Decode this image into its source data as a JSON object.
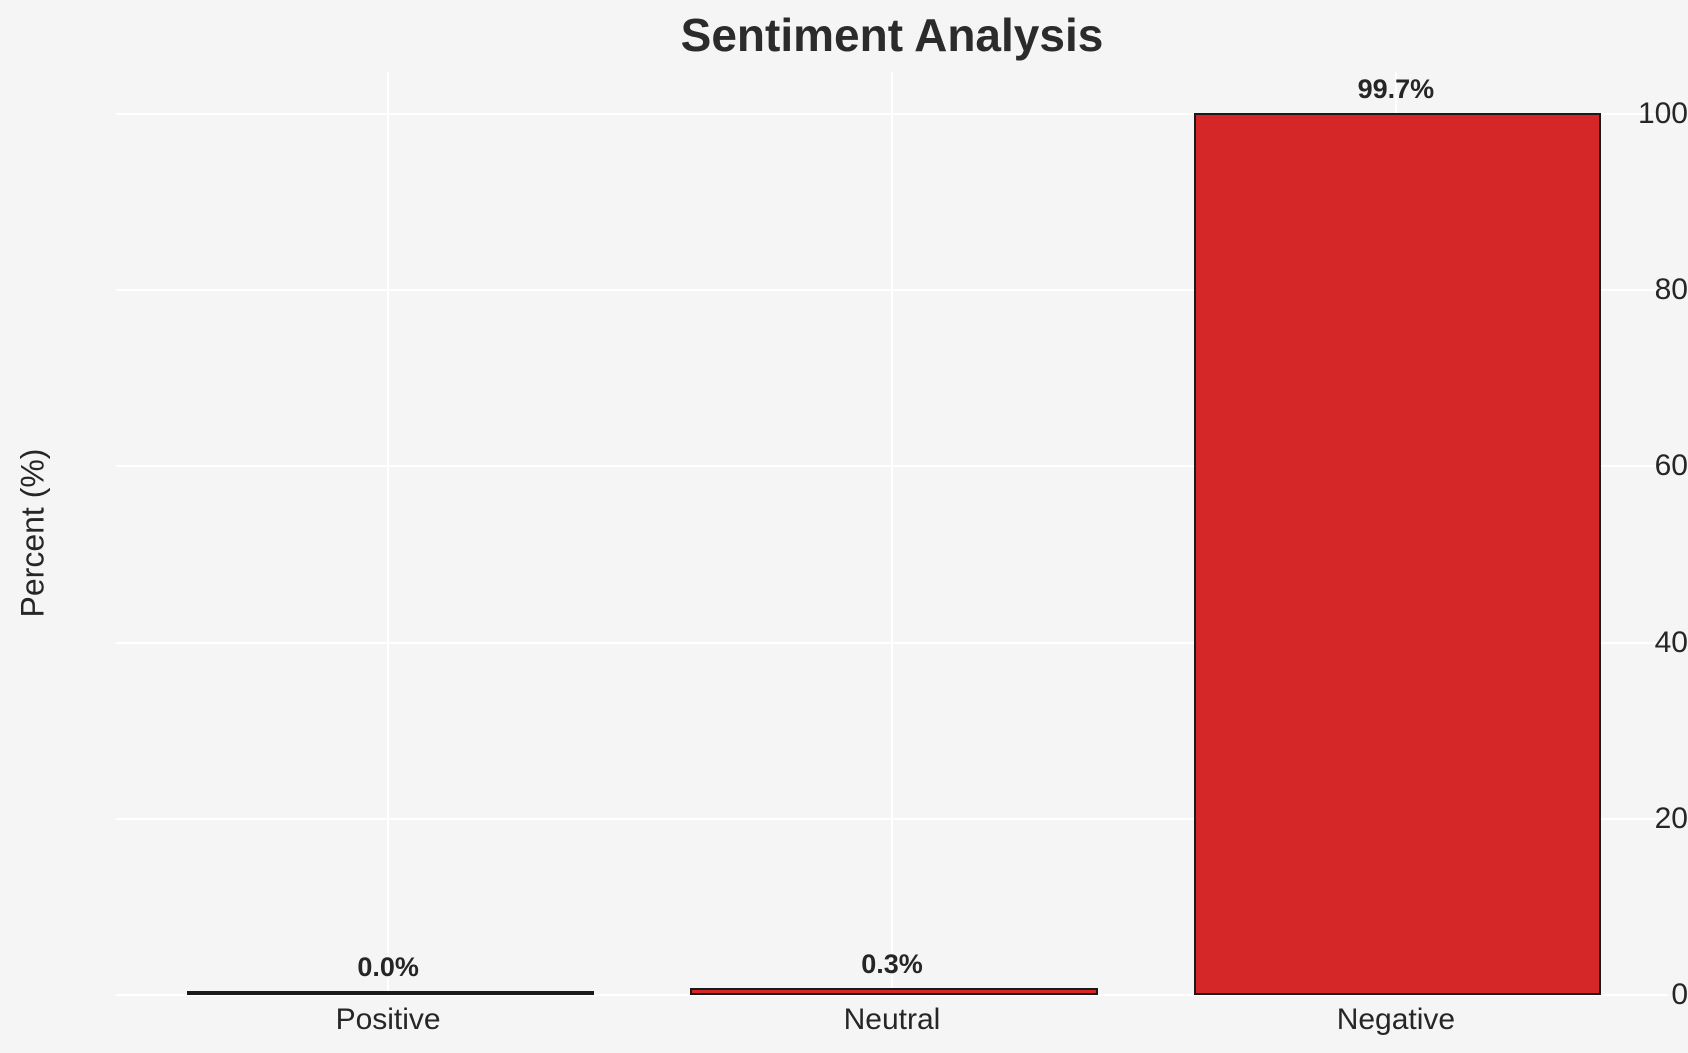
{
  "chart_data": {
    "type": "bar",
    "title": "Sentiment Analysis",
    "ylabel": "Percent (%)",
    "categories": [
      "Positive",
      "Neutral",
      "Negative"
    ],
    "values": [
      0.0,
      0.3,
      99.7
    ],
    "value_labels": [
      "0.0%",
      "0.3%",
      "99.7%"
    ],
    "yticks": [
      0,
      20,
      40,
      60,
      80,
      100
    ],
    "ylim": [
      0,
      104.8
    ],
    "grid": "on",
    "legend": "none",
    "colors": {
      "bar_fill": "#d62728",
      "bar_edge": "#1a1a1a",
      "background": "#f5f5f5",
      "gridline": "#ffffff",
      "text": "#262626",
      "title_text": "#2b2b2b"
    }
  }
}
